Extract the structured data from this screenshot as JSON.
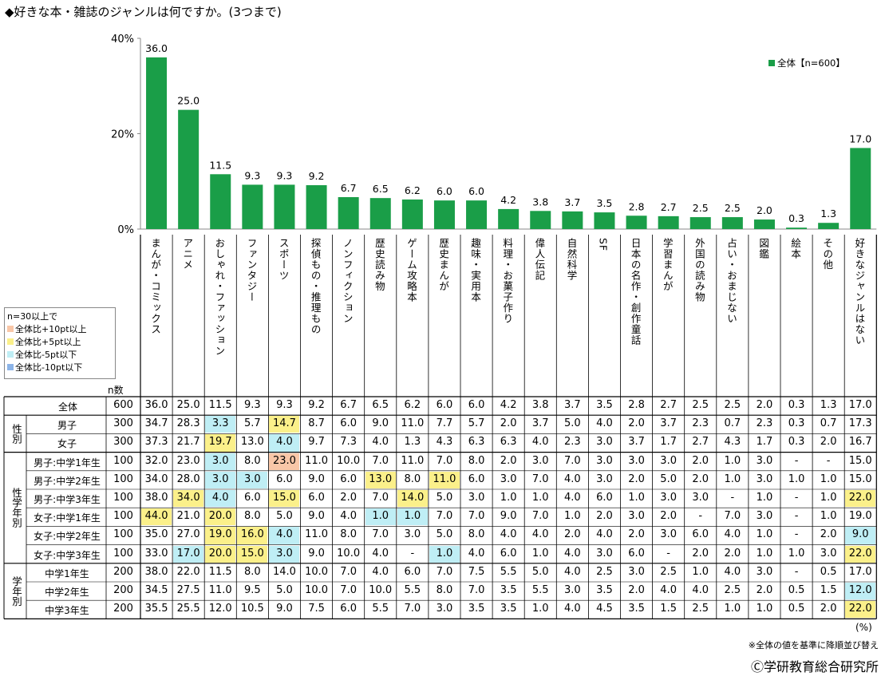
{
  "title": "◆好きな本・雑誌のジャンルは何ですか。(3つまで)",
  "chart_data": {
    "type": "bar",
    "yticks": [
      "0%",
      "20%",
      "40%"
    ],
    "ylim": [
      0,
      40
    ],
    "legend": "全体【n=600】",
    "legend_position": "top-right",
    "bar_color": "#1a9e48",
    "categories": [
      "まんが・コミックス",
      "アニメ",
      "おしゃれ・ファッション",
      "ファンタジー",
      "スポーツ",
      "探偵もの・推理もの",
      "ノンフィクション",
      "歴史読み物",
      "ゲーム攻略本",
      "歴史まんが",
      "趣味・実用本",
      "料理・お菓子作り",
      "偉人伝記",
      "自然科学",
      "SF",
      "日本の名作・創作童話",
      "学習まんが",
      "外国の読み物",
      "占い・おまじない",
      "図鑑",
      "絵本",
      "その他",
      "好きなジャンルはない"
    ],
    "values": [
      36.0,
      25.0,
      11.5,
      9.3,
      9.3,
      9.2,
      6.7,
      6.5,
      6.2,
      6.0,
      6.0,
      4.2,
      3.8,
      3.7,
      3.5,
      2.8,
      2.7,
      2.5,
      2.5,
      2.0,
      0.3,
      1.3,
      17.0
    ],
    "value_labels": [
      "36.0",
      "25.0",
      "11.5",
      "9.3",
      "9.3",
      "9.2",
      "6.7",
      "6.5",
      "6.2",
      "6.0",
      "6.0",
      "4.2",
      "3.8",
      "3.7",
      "3.5",
      "2.8",
      "2.7",
      "2.5",
      "2.5",
      "2.0",
      "0.3",
      "1.3",
      "17.0"
    ]
  },
  "legend_box": {
    "title": "n=30以上で",
    "items": [
      {
        "label": "全体比+10pt以上",
        "color": "#f9c7a8"
      },
      {
        "label": "全体比+5pt以上",
        "color": "#fbf08a"
      },
      {
        "label": "全体比-5pt以下",
        "color": "#bfeef5"
      },
      {
        "label": "全体比-10pt以下",
        "color": "#8cb4e8"
      }
    ]
  },
  "table": {
    "n_header": "n数",
    "groups": [
      {
        "label": "性別",
        "rows": [
          1,
          2
        ]
      },
      {
        "label": "性学年別",
        "rows": [
          3,
          8
        ]
      },
      {
        "label": "学年別",
        "rows": [
          9,
          11
        ]
      }
    ],
    "rows": [
      {
        "label": "全体",
        "n": "600",
        "cells": [
          "36.0",
          "25.0",
          "11.5",
          "9.3",
          "9.3",
          "9.2",
          "6.7",
          "6.5",
          "6.2",
          "6.0",
          "6.0",
          "4.2",
          "3.8",
          "3.7",
          "3.5",
          "2.8",
          "2.7",
          "2.5",
          "2.5",
          "2.0",
          "0.3",
          "1.3",
          "17.0"
        ],
        "hl": {}
      },
      {
        "label": "男子",
        "n": "300",
        "cells": [
          "34.7",
          "28.3",
          "3.3",
          "5.7",
          "14.7",
          "8.7",
          "6.0",
          "9.0",
          "11.0",
          "7.7",
          "5.7",
          "2.0",
          "3.7",
          "5.0",
          "4.0",
          "2.0",
          "3.7",
          "2.3",
          "0.7",
          "2.3",
          "0.3",
          "0.7",
          "17.3"
        ],
        "hl": {
          "2": "c",
          "4": "y"
        }
      },
      {
        "label": "女子",
        "n": "300",
        "cells": [
          "37.3",
          "21.7",
          "19.7",
          "13.0",
          "4.0",
          "9.7",
          "7.3",
          "4.0",
          "1.3",
          "4.3",
          "6.3",
          "6.3",
          "4.0",
          "2.3",
          "3.0",
          "3.7",
          "1.7",
          "2.7",
          "4.3",
          "1.7",
          "0.3",
          "2.0",
          "16.7"
        ],
        "hl": {
          "2": "y",
          "4": "c"
        }
      },
      {
        "label": "男子:中学1年生",
        "n": "100",
        "cells": [
          "32.0",
          "23.0",
          "3.0",
          "8.0",
          "23.0",
          "11.0",
          "10.0",
          "7.0",
          "11.0",
          "7.0",
          "8.0",
          "2.0",
          "3.0",
          "7.0",
          "3.0",
          "3.0",
          "3.0",
          "2.0",
          "1.0",
          "3.0",
          "-",
          "-",
          "15.0"
        ],
        "hl": {
          "2": "c",
          "4": "o"
        }
      },
      {
        "label": "男子:中学2年生",
        "n": "100",
        "cells": [
          "34.0",
          "28.0",
          "3.0",
          "3.0",
          "6.0",
          "9.0",
          "6.0",
          "13.0",
          "8.0",
          "11.0",
          "6.0",
          "3.0",
          "7.0",
          "4.0",
          "3.0",
          "2.0",
          "5.0",
          "2.0",
          "1.0",
          "3.0",
          "1.0",
          "1.0",
          "15.0"
        ],
        "hl": {
          "2": "c",
          "3": "c",
          "7": "y",
          "9": "y"
        }
      },
      {
        "label": "男子:中学3年生",
        "n": "100",
        "cells": [
          "38.0",
          "34.0",
          "4.0",
          "6.0",
          "15.0",
          "6.0",
          "2.0",
          "7.0",
          "14.0",
          "5.0",
          "3.0",
          "1.0",
          "1.0",
          "4.0",
          "6.0",
          "1.0",
          "3.0",
          "3.0",
          "-",
          "1.0",
          "-",
          "1.0",
          "22.0"
        ],
        "hl": {
          "1": "y",
          "2": "c",
          "4": "y",
          "8": "y",
          "22": "y"
        }
      },
      {
        "label": "女子:中学1年生",
        "n": "100",
        "cells": [
          "44.0",
          "21.0",
          "20.0",
          "8.0",
          "5.0",
          "9.0",
          "4.0",
          "1.0",
          "1.0",
          "7.0",
          "7.0",
          "9.0",
          "7.0",
          "1.0",
          "2.0",
          "3.0",
          "2.0",
          "-",
          "7.0",
          "3.0",
          "-",
          "1.0",
          "19.0"
        ],
        "hl": {
          "0": "y",
          "2": "y",
          "7": "c",
          "8": "c"
        }
      },
      {
        "label": "女子:中学2年生",
        "n": "100",
        "cells": [
          "35.0",
          "27.0",
          "19.0",
          "16.0",
          "4.0",
          "11.0",
          "8.0",
          "7.0",
          "3.0",
          "5.0",
          "8.0",
          "4.0",
          "4.0",
          "2.0",
          "4.0",
          "2.0",
          "3.0",
          "6.0",
          "4.0",
          "1.0",
          "-",
          "2.0",
          "9.0"
        ],
        "hl": {
          "2": "y",
          "3": "y",
          "4": "c",
          "22": "c"
        }
      },
      {
        "label": "女子:中学3年生",
        "n": "100",
        "cells": [
          "33.0",
          "17.0",
          "20.0",
          "15.0",
          "3.0",
          "9.0",
          "10.0",
          "4.0",
          "-",
          "1.0",
          "4.0",
          "6.0",
          "1.0",
          "4.0",
          "3.0",
          "6.0",
          "-",
          "2.0",
          "2.0",
          "1.0",
          "1.0",
          "3.0",
          "22.0"
        ],
        "hl": {
          "1": "c",
          "2": "y",
          "3": "y",
          "4": "c",
          "9": "c",
          "22": "y"
        }
      },
      {
        "label": "中学1年生",
        "n": "200",
        "cells": [
          "38.0",
          "22.0",
          "11.5",
          "8.0",
          "14.0",
          "10.0",
          "7.0",
          "4.0",
          "6.0",
          "7.0",
          "7.5",
          "5.5",
          "5.0",
          "4.0",
          "2.5",
          "3.0",
          "2.5",
          "1.0",
          "4.0",
          "3.0",
          "-",
          "0.5",
          "17.0"
        ],
        "hl": {}
      },
      {
        "label": "中学2年生",
        "n": "200",
        "cells": [
          "34.5",
          "27.5",
          "11.0",
          "9.5",
          "5.0",
          "10.0",
          "7.0",
          "10.0",
          "5.5",
          "8.0",
          "7.0",
          "3.5",
          "5.5",
          "3.0",
          "3.5",
          "2.0",
          "4.0",
          "4.0",
          "2.5",
          "2.0",
          "0.5",
          "1.5",
          "12.0"
        ],
        "hl": {
          "22": "c"
        }
      },
      {
        "label": "中学3年生",
        "n": "200",
        "cells": [
          "35.5",
          "25.5",
          "12.0",
          "10.5",
          "9.0",
          "7.5",
          "6.0",
          "5.5",
          "7.0",
          "3.0",
          "3.5",
          "3.5",
          "1.0",
          "4.0",
          "4.5",
          "3.5",
          "1.5",
          "2.5",
          "1.0",
          "1.0",
          "0.5",
          "2.0",
          "22.0"
        ],
        "hl": {
          "22": "y"
        }
      }
    ]
  },
  "unit": "(%)",
  "note": "※全体の値を基準に降順並び替え",
  "copyright": "Ⓒ学研教育総合研究所"
}
